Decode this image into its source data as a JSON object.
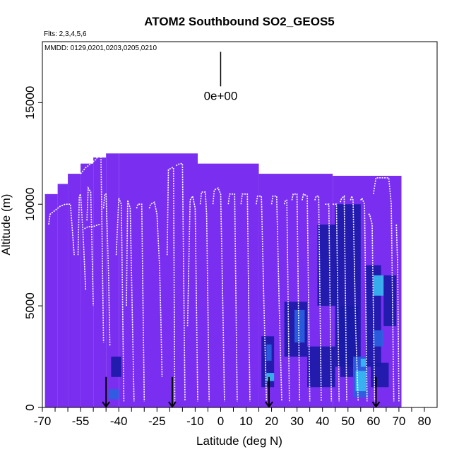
{
  "chart_data": {
    "type": "heatmap",
    "title": "ATOM2 Southbound SO2_GEOS5",
    "annotations": {
      "flights": "Flts: 2,3,4,5,6",
      "dates": "MMDD: 0129,0201,0203,0205,0210",
      "scale_label": "0e+00"
    },
    "xlabel": "Latitude (deg N)",
    "ylabel": "Altitude (m)",
    "xlim": [
      -70,
      85
    ],
    "ylim": [
      0,
      18000
    ],
    "x_ticks": [
      {
        "v": -70,
        "label": "-70"
      },
      {
        "v": -55,
        "label": "-55"
      },
      {
        "v": -40,
        "label": "-40"
      },
      {
        "v": -25,
        "label": "-25"
      },
      {
        "v": -10,
        "label": "-10"
      },
      {
        "v": 0,
        "label": "0"
      },
      {
        "v": 10,
        "label": "10"
      },
      {
        "v": 20,
        "label": "20"
      },
      {
        "v": 30,
        "label": "30"
      },
      {
        "v": 40,
        "label": "40"
      },
      {
        "v": 50,
        "label": "50"
      },
      {
        "v": 60,
        "label": "60"
      },
      {
        "v": 70,
        "label": "70"
      },
      {
        "v": 80,
        "label": "80"
      }
    ],
    "x_minor_ticks": [
      -65,
      -60,
      -50,
      -45,
      -35,
      -30,
      -20,
      -15,
      -5,
      5,
      15,
      25,
      35,
      45,
      55,
      65,
      75
    ],
    "y_ticks": [
      {
        "v": 0,
        "label": "0"
      },
      {
        "v": 5000,
        "label": "5000"
      },
      {
        "v": 10000,
        "label": "10000"
      },
      {
        "v": 15000,
        "label": "15000"
      }
    ],
    "grid": false,
    "colors": {
      "background_field": "#7a2ff0",
      "low": "#1a1aa8",
      "mid": "#2a5fe0",
      "high": "#37b8f0",
      "track": "#ffffff",
      "arrows": "#000000"
    },
    "field_columns": [
      {
        "x0": -69,
        "x1": -64,
        "top": 10500
      },
      {
        "x0": -64,
        "x1": -60,
        "top": 11000
      },
      {
        "x0": -60,
        "x1": -55,
        "top": 11500
      },
      {
        "x0": -55,
        "x1": -50,
        "top": 12000
      },
      {
        "x0": -50,
        "x1": -45,
        "top": 12300
      },
      {
        "x0": -45,
        "x1": -40,
        "top": 12500
      },
      {
        "x0": -40,
        "x1": -9,
        "top": 12500
      },
      {
        "x0": -9,
        "x1": 15,
        "top": 12000
      },
      {
        "x0": 15,
        "x1": 44,
        "top": 11500
      },
      {
        "x0": 44,
        "x1": 71,
        "top": 11400
      }
    ],
    "field_patches": [
      {
        "x0": -43,
        "x1": -39,
        "y0": 1500,
        "y1": 2500,
        "level": "low"
      },
      {
        "x0": -44,
        "x1": -40,
        "y0": 400,
        "y1": 900,
        "level": "mid"
      },
      {
        "x0": 16,
        "x1": 21,
        "y0": 1000,
        "y1": 3500,
        "level": "low"
      },
      {
        "x0": 18,
        "x1": 21,
        "y0": 1300,
        "y1": 1700,
        "level": "high"
      },
      {
        "x0": 18,
        "x1": 20,
        "y0": 2300,
        "y1": 3100,
        "level": "mid"
      },
      {
        "x0": 25,
        "x1": 34,
        "y0": 2500,
        "y1": 5200,
        "level": "low"
      },
      {
        "x0": 29,
        "x1": 33,
        "y0": 3200,
        "y1": 4800,
        "level": "mid"
      },
      {
        "x0": 38,
        "x1": 46,
        "y0": 5000,
        "y1": 9000,
        "level": "low"
      },
      {
        "x0": 34,
        "x1": 45,
        "y0": 1000,
        "y1": 3000,
        "level": "low"
      },
      {
        "x0": 45,
        "x1": 55,
        "y0": 2000,
        "y1": 10000,
        "level": "low"
      },
      {
        "x0": 47,
        "x1": 54,
        "y0": 1500,
        "y1": 5000,
        "level": "low"
      },
      {
        "x0": 52,
        "x1": 58,
        "y0": 500,
        "y1": 2500,
        "level": "mid"
      },
      {
        "x0": 53,
        "x1": 57,
        "y0": 800,
        "y1": 1800,
        "level": "high"
      },
      {
        "x0": 55,
        "x1": 57,
        "y0": 2000,
        "y1": 2400,
        "level": "high"
      },
      {
        "x0": 57,
        "x1": 63,
        "y0": 2000,
        "y1": 7000,
        "level": "low"
      },
      {
        "x0": 60,
        "x1": 64,
        "y0": 5500,
        "y1": 6500,
        "level": "high"
      },
      {
        "x0": 60,
        "x1": 64,
        "y0": 3000,
        "y1": 3800,
        "level": "mid"
      },
      {
        "x0": 59,
        "x1": 66,
        "y0": 1000,
        "y1": 2200,
        "level": "low"
      },
      {
        "x0": 64,
        "x1": 69,
        "y0": 4000,
        "y1": 6500,
        "level": "low"
      }
    ],
    "track_segments": [
      [
        [
          -67.5,
          9000
        ],
        [
          -67,
          9500
        ],
        [
          -65,
          9700
        ],
        [
          -63,
          9900
        ],
        [
          -61,
          10000
        ],
        [
          -60,
          10000
        ],
        [
          -59,
          10000
        ],
        [
          -57.5,
          7500
        ]
      ],
      [
        [
          -56,
          7500
        ],
        [
          -55.5,
          10400
        ],
        [
          -55,
          10500
        ],
        [
          -54,
          8500
        ],
        [
          -53,
          5800
        ]
      ],
      [
        [
          -53.5,
          8800
        ],
        [
          -52,
          8900
        ],
        [
          -50,
          8900
        ],
        [
          -48,
          9000
        ],
        [
          -47,
          9000
        ]
      ],
      [
        [
          -55,
          11500
        ],
        [
          -53,
          11800
        ],
        [
          -51,
          12000
        ],
        [
          -49,
          12200
        ],
        [
          -48,
          12400
        ],
        [
          -47,
          12500
        ],
        [
          -46,
          3200
        ]
      ],
      [
        [
          -52.5,
          9200
        ],
        [
          -52,
          10800
        ],
        [
          -51,
          10600
        ],
        [
          -50,
          5000
        ]
      ],
      [
        [
          -46,
          9800
        ],
        [
          -45.5,
          10500
        ],
        [
          -45,
          10500
        ],
        [
          -44,
          6500
        ],
        [
          -43.5,
          3000
        ]
      ],
      [
        [
          -41,
          7500
        ],
        [
          -40,
          10300
        ],
        [
          -39,
          10000
        ],
        [
          -38,
          300
        ]
      ],
      [
        [
          -37,
          5000
        ],
        [
          -36.5,
          10200
        ],
        [
          -35.5,
          9800
        ],
        [
          -34,
          300
        ]
      ],
      [
        [
          -33,
          9800
        ],
        [
          -32.5,
          10000
        ],
        [
          -31,
          10000
        ],
        [
          -30,
          300
        ]
      ],
      [
        [
          -28,
          9800
        ],
        [
          -27.5,
          10000
        ],
        [
          -26,
          10100
        ],
        [
          -25,
          9500
        ],
        [
          -24,
          7000
        ],
        [
          -23.5,
          4500
        ],
        [
          -23,
          1500
        ]
      ],
      [
        [
          -21,
          7500
        ],
        [
          -20.5,
          11700
        ],
        [
          -19,
          11800
        ],
        [
          -18.5,
          11800
        ],
        [
          -18,
          300
        ]
      ],
      [
        [
          -17.5,
          11900
        ],
        [
          -16,
          12000
        ],
        [
          -15,
          12000
        ],
        [
          -14,
          300
        ]
      ],
      [
        [
          -13,
          4000
        ],
        [
          -12,
          10200
        ],
        [
          -11,
          10400
        ],
        [
          -10,
          9800
        ],
        [
          -9,
          300
        ]
      ],
      [
        [
          -8,
          10000
        ],
        [
          -7.5,
          10600
        ],
        [
          -6,
          10600
        ],
        [
          -5.5,
          9500
        ],
        [
          -5,
          5000
        ],
        [
          -4.5,
          300
        ]
      ],
      [
        [
          -3,
          10000
        ],
        [
          -2.5,
          10700
        ],
        [
          -1,
          10800
        ],
        [
          0,
          10500
        ],
        [
          1,
          4000
        ],
        [
          1.5,
          300
        ]
      ],
      [
        [
          3,
          10000
        ],
        [
          3.5,
          10500
        ],
        [
          5.5,
          10500
        ],
        [
          6.5,
          300
        ]
      ],
      [
        [
          8,
          10000
        ],
        [
          8.5,
          10500
        ],
        [
          10.5,
          10500
        ],
        [
          11.5,
          300
        ]
      ],
      [
        [
          14,
          10000
        ],
        [
          14.5,
          10400
        ],
        [
          16,
          10400
        ],
        [
          17,
          5000
        ],
        [
          18,
          300
        ]
      ],
      [
        [
          20,
          10000
        ],
        [
          20.5,
          10400
        ],
        [
          22,
          10400
        ],
        [
          23,
          5000
        ],
        [
          24,
          300
        ]
      ],
      [
        [
          25,
          10000
        ],
        [
          25.5,
          10200
        ],
        [
          26,
          10200
        ],
        [
          27,
          300
        ]
      ],
      [
        [
          28,
          10200
        ],
        [
          28.5,
          10500
        ],
        [
          30,
          10500
        ],
        [
          31,
          300
        ]
      ],
      [
        [
          32,
          10200
        ],
        [
          32.5,
          10500
        ],
        [
          34,
          10400
        ],
        [
          35,
          300
        ]
      ],
      [
        [
          37,
          10200
        ],
        [
          37.5,
          10400
        ],
        [
          38.5,
          10400
        ],
        [
          39.5,
          300
        ]
      ],
      [
        [
          41,
          10000
        ],
        [
          41.5,
          10000
        ],
        [
          42.5,
          10000
        ],
        [
          43,
          5000
        ],
        [
          43.5,
          300
        ]
      ],
      [
        [
          44,
          10000
        ],
        [
          44.5,
          10000
        ],
        [
          45.5,
          10000
        ],
        [
          46.5,
          300
        ]
      ],
      [
        [
          47,
          10100
        ],
        [
          47.5,
          10300
        ],
        [
          48.5,
          10400
        ],
        [
          49.5,
          300
        ]
      ],
      [
        [
          51,
          10200
        ],
        [
          51.5,
          10400
        ],
        [
          52,
          10200
        ],
        [
          53,
          4000
        ],
        [
          54,
          300
        ]
      ],
      [
        [
          55,
          10200
        ],
        [
          55.5,
          10300
        ],
        [
          56.5,
          10000
        ],
        [
          57.5,
          300
        ]
      ],
      [
        [
          58,
          9500
        ],
        [
          58.5,
          9500
        ],
        [
          59.5,
          9000
        ],
        [
          60.5,
          300
        ]
      ],
      [
        [
          60,
          10500
        ],
        [
          61,
          11300
        ],
        [
          64,
          11300
        ],
        [
          66,
          11300
        ],
        [
          67,
          10000
        ],
        [
          68,
          300
        ]
      ],
      [
        [
          69,
          9000
        ],
        [
          69.5,
          7000
        ],
        [
          70,
          300
        ]
      ]
    ],
    "arrows": [
      {
        "lat": -45,
        "alt": 600
      },
      {
        "lat": -19,
        "alt": 600
      },
      {
        "lat": 19,
        "alt": 600
      },
      {
        "lat": 61,
        "alt": 600
      }
    ],
    "scale_bar": {
      "lat": 0,
      "alt_top": 17500,
      "alt_bottom": 15800
    }
  }
}
